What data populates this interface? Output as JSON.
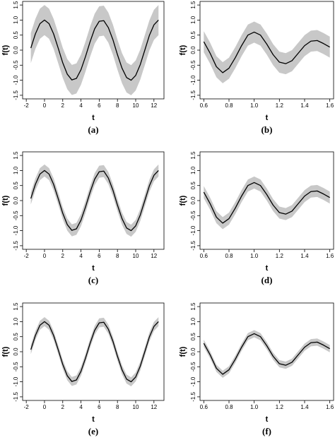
{
  "chart_data": [
    {
      "type": "line",
      "xlabel": "t",
      "ylabel": "f(t)",
      "caption": "(a)",
      "color": "#000000",
      "band_color": "#c8c8c8",
      "x": [
        -1.5,
        -1,
        -0.5,
        0,
        0.5,
        1,
        1.5,
        2,
        2.5,
        3,
        3.5,
        4,
        4.5,
        5,
        5.5,
        6,
        6.5,
        7,
        7.5,
        8,
        8.5,
        9,
        9.5,
        10,
        10.5,
        11,
        11.5,
        12,
        12.5
      ],
      "values": [
        0.07,
        0.54,
        0.88,
        1,
        0.88,
        0.54,
        0.07,
        -0.42,
        -0.8,
        -0.99,
        -0.94,
        -0.65,
        -0.21,
        0.28,
        0.71,
        0.96,
        0.98,
        0.75,
        0.35,
        -0.15,
        -0.6,
        -0.91,
        -1,
        -0.84,
        -0.48,
        0,
        0.49,
        0.84,
        1
      ],
      "band_lower": [
        -0.43,
        0.04,
        0.38,
        0.5,
        0.38,
        0.04,
        -0.43,
        -0.92,
        -1.3,
        -1.49,
        -1.44,
        -1.15,
        -0.71,
        -0.22,
        0.21,
        0.46,
        0.48,
        0.25,
        -0.15,
        -0.65,
        -1.1,
        -1.41,
        -1.5,
        -1.34,
        -0.98,
        -0.5,
        -0.01,
        0.34,
        0.5
      ],
      "band_upper": [
        0.57,
        1.04,
        1.38,
        1.5,
        1.38,
        1.04,
        0.57,
        0.08,
        -0.3,
        -0.49,
        -0.44,
        -0.15,
        0.29,
        0.78,
        1.21,
        1.46,
        1.48,
        1.25,
        0.85,
        0.35,
        -0.1,
        -0.41,
        -0.5,
        -0.34,
        0.02,
        0.5,
        0.99,
        1.34,
        1.5
      ],
      "xlim": [
        -2.4,
        13.1
      ],
      "xticks": [
        -2,
        0,
        2,
        4,
        6,
        8,
        10,
        12
      ],
      "ylim": [
        -1.62,
        1.62
      ],
      "yticks": [
        {
          "value": -1.5,
          "label": "-1.5"
        },
        {
          "value": -1,
          "label": "-1.0"
        },
        {
          "value": -0.5,
          "label": "-0.5"
        },
        {
          "value": 0,
          "label": "0.0"
        },
        {
          "value": 0.5,
          "label": "0.5"
        },
        {
          "value": 1,
          "label": "1.0"
        },
        {
          "value": 1.5,
          "label": "1.5"
        }
      ]
    },
    {
      "type": "line",
      "xlabel": "t",
      "ylabel": "f(t)",
      "caption": "(b)",
      "color": "#000000",
      "band_color": "#c8c8c8",
      "x": [
        0.6,
        0.65,
        0.7,
        0.75,
        0.8,
        0.85,
        0.9,
        0.95,
        1,
        1.05,
        1.1,
        1.15,
        1.2,
        1.25,
        1.3,
        1.35,
        1.4,
        1.45,
        1.5,
        1.55,
        1.6
      ],
      "values": [
        0.28,
        -0.1,
        -0.55,
        -0.75,
        -0.6,
        -0.25,
        0.15,
        0.5,
        0.6,
        0.5,
        0.2,
        -0.15,
        -0.4,
        -0.45,
        -0.35,
        -0.1,
        0.15,
        0.3,
        0.32,
        0.22,
        0.1
      ],
      "band_lower": [
        -0.07,
        -0.45,
        -0.9,
        -1.1,
        -0.95,
        -0.6,
        -0.2,
        0.15,
        0.25,
        0.15,
        -0.15,
        -0.5,
        -0.75,
        -0.8,
        -0.7,
        -0.45,
        -0.2,
        -0.05,
        -0.03,
        -0.13,
        -0.25
      ],
      "band_upper": [
        0.63,
        0.25,
        -0.2,
        -0.4,
        -0.25,
        0.1,
        0.5,
        0.85,
        0.95,
        0.85,
        0.55,
        0.2,
        -0.05,
        -0.1,
        0,
        0.25,
        0.5,
        0.65,
        0.67,
        0.57,
        0.45
      ],
      "xlim": [
        0.57,
        1.63
      ],
      "xticks": [
        0.6,
        0.8,
        {
          "value": 1,
          "label": "1.0"
        },
        1.2,
        1.4,
        1.6
      ],
      "ylim": [
        -1.62,
        1.62
      ],
      "yticks": [
        {
          "value": -1.5,
          "label": "-1.5"
        },
        {
          "value": -1,
          "label": "-1.0"
        },
        {
          "value": -0.5,
          "label": "-0.5"
        },
        {
          "value": 0,
          "label": "0.0"
        },
        {
          "value": 0.5,
          "label": "0.5"
        },
        {
          "value": 1,
          "label": "1.0"
        },
        {
          "value": 1.5,
          "label": "1.5"
        }
      ]
    },
    {
      "type": "line",
      "xlabel": "t",
      "ylabel": "f(t)",
      "caption": "(c)",
      "color": "#000000",
      "band_color": "#c8c8c8",
      "x": [
        -1.5,
        -1,
        -0.5,
        0,
        0.5,
        1,
        1.5,
        2,
        2.5,
        3,
        3.5,
        4,
        4.5,
        5,
        5.5,
        6,
        6.5,
        7,
        7.5,
        8,
        8.5,
        9,
        9.5,
        10,
        10.5,
        11,
        11.5,
        12,
        12.5
      ],
      "values": [
        0.07,
        0.54,
        0.88,
        1,
        0.88,
        0.54,
        0.07,
        -0.42,
        -0.8,
        -0.99,
        -0.94,
        -0.65,
        -0.21,
        0.28,
        0.71,
        0.96,
        0.98,
        0.75,
        0.35,
        -0.15,
        -0.6,
        -0.91,
        -1,
        -0.84,
        -0.48,
        0,
        0.49,
        0.84,
        1
      ],
      "band_lower": [
        -0.13,
        0.34,
        0.68,
        0.8,
        0.68,
        0.34,
        -0.13,
        -0.62,
        -1,
        -1.19,
        -1.14,
        -0.85,
        -0.41,
        0.08,
        0.51,
        0.76,
        0.78,
        0.55,
        0.15,
        -0.35,
        -0.8,
        -1.11,
        -1.2,
        -1.04,
        -0.68,
        -0.2,
        0.29,
        0.64,
        0.8
      ],
      "band_upper": [
        0.27,
        0.74,
        1.08,
        1.2,
        1.08,
        0.74,
        0.27,
        -0.22,
        -0.6,
        -0.79,
        -0.74,
        -0.45,
        -0.01,
        0.48,
        0.91,
        1.16,
        1.18,
        0.95,
        0.55,
        0.05,
        -0.4,
        -0.71,
        -0.8,
        -0.64,
        -0.28,
        0.2,
        0.69,
        1.04,
        1.2
      ],
      "xlim": [
        -2.4,
        13.1
      ],
      "xticks": [
        -2,
        0,
        2,
        4,
        6,
        8,
        10,
        12
      ],
      "ylim": [
        -1.62,
        1.62
      ],
      "yticks": [
        {
          "value": -1.5,
          "label": "-1.5"
        },
        {
          "value": -1,
          "label": "-1.0"
        },
        {
          "value": -0.5,
          "label": "-0.5"
        },
        {
          "value": 0,
          "label": "0.0"
        },
        {
          "value": 0.5,
          "label": "0.5"
        },
        {
          "value": 1,
          "label": "1.0"
        },
        {
          "value": 1.5,
          "label": "1.5"
        }
      ]
    },
    {
      "type": "line",
      "xlabel": "t",
      "ylabel": "f(t)",
      "caption": "(d)",
      "color": "#000000",
      "band_color": "#c8c8c8",
      "x": [
        0.6,
        0.65,
        0.7,
        0.75,
        0.8,
        0.85,
        0.9,
        0.95,
        1,
        1.05,
        1.1,
        1.15,
        1.2,
        1.25,
        1.3,
        1.35,
        1.4,
        1.45,
        1.5,
        1.55,
        1.6
      ],
      "values": [
        0.28,
        -0.1,
        -0.55,
        -0.75,
        -0.6,
        -0.25,
        0.15,
        0.5,
        0.6,
        0.5,
        0.2,
        -0.15,
        -0.4,
        -0.45,
        -0.35,
        -0.1,
        0.15,
        0.3,
        0.32,
        0.22,
        0.1
      ],
      "band_lower": [
        0.08,
        -0.3,
        -0.75,
        -0.95,
        -0.8,
        -0.45,
        -0.05,
        0.3,
        0.4,
        0.3,
        0,
        -0.35,
        -0.6,
        -0.65,
        -0.55,
        -0.3,
        -0.05,
        0.1,
        0.12,
        0.02,
        -0.1
      ],
      "band_upper": [
        0.48,
        0.1,
        -0.35,
        -0.55,
        -0.4,
        -0.05,
        0.35,
        0.7,
        0.8,
        0.7,
        0.4,
        0.05,
        -0.2,
        -0.25,
        -0.15,
        0.1,
        0.35,
        0.5,
        0.52,
        0.42,
        0.3
      ],
      "xlim": [
        0.57,
        1.63
      ],
      "xticks": [
        0.6,
        0.8,
        {
          "value": 1,
          "label": "1.0"
        },
        1.2,
        1.4,
        1.6
      ],
      "ylim": [
        -1.62,
        1.62
      ],
      "yticks": [
        {
          "value": -1.5,
          "label": "-1.5"
        },
        {
          "value": -1,
          "label": "-1.0"
        },
        {
          "value": -0.5,
          "label": "-0.5"
        },
        {
          "value": 0,
          "label": "0.0"
        },
        {
          "value": 0.5,
          "label": "0.5"
        },
        {
          "value": 1,
          "label": "1.0"
        },
        {
          "value": 1.5,
          "label": "1.5"
        }
      ]
    },
    {
      "type": "line",
      "xlabel": "t",
      "ylabel": "f(t)",
      "caption": "(e)",
      "color": "#000000",
      "band_color": "#c8c8c8",
      "x": [
        -1.5,
        -1,
        -0.5,
        0,
        0.5,
        1,
        1.5,
        2,
        2.5,
        3,
        3.5,
        4,
        4.5,
        5,
        5.5,
        6,
        6.5,
        7,
        7.5,
        8,
        8.5,
        9,
        9.5,
        10,
        10.5,
        11,
        11.5,
        12,
        12.5
      ],
      "values": [
        0.07,
        0.54,
        0.88,
        1,
        0.88,
        0.54,
        0.07,
        -0.42,
        -0.8,
        -0.99,
        -0.94,
        -0.65,
        -0.21,
        0.28,
        0.71,
        0.96,
        0.98,
        0.75,
        0.35,
        -0.15,
        -0.6,
        -0.91,
        -1,
        -0.84,
        -0.48,
        0,
        0.49,
        0.84,
        1
      ],
      "band_lower": [
        -0.08,
        0.39,
        0.73,
        0.85,
        0.73,
        0.39,
        -0.08,
        -0.57,
        -0.95,
        -1.14,
        -1.09,
        -0.8,
        -0.36,
        0.13,
        0.56,
        0.81,
        0.83,
        0.6,
        0.2,
        -0.3,
        -0.75,
        -1.06,
        -1.15,
        -0.99,
        -0.63,
        -0.15,
        0.34,
        0.69,
        0.85
      ],
      "band_upper": [
        0.22,
        0.69,
        1.03,
        1.15,
        1.03,
        0.69,
        0.22,
        -0.27,
        -0.65,
        -0.84,
        -0.79,
        -0.5,
        -0.06,
        0.43,
        0.86,
        1.11,
        1.13,
        0.9,
        0.5,
        0,
        -0.45,
        -0.76,
        -0.85,
        -0.69,
        -0.33,
        0.15,
        0.64,
        0.99,
        1.15
      ],
      "xlim": [
        -2.4,
        13.1
      ],
      "xticks": [
        -2,
        0,
        2,
        4,
        6,
        8,
        10,
        12
      ],
      "ylim": [
        -1.62,
        1.62
      ],
      "yticks": [
        {
          "value": -1.5,
          "label": "-1.5"
        },
        {
          "value": -1,
          "label": "-1.0"
        },
        {
          "value": -0.5,
          "label": "-0.5"
        },
        {
          "value": 0,
          "label": "0.0"
        },
        {
          "value": 0.5,
          "label": "0.5"
        },
        {
          "value": 1,
          "label": "1.0"
        },
        {
          "value": 1.5,
          "label": "1.5"
        }
      ]
    },
    {
      "type": "line",
      "xlabel": "t",
      "ylabel": "f(t)",
      "caption": "(f)",
      "color": "#000000",
      "band_color": "#c8c8c8",
      "x": [
        0.6,
        0.65,
        0.7,
        0.75,
        0.8,
        0.85,
        0.9,
        0.95,
        1,
        1.05,
        1.1,
        1.15,
        1.2,
        1.25,
        1.3,
        1.35,
        1.4,
        1.45,
        1.5,
        1.55,
        1.6
      ],
      "values": [
        0.28,
        -0.1,
        -0.55,
        -0.75,
        -0.6,
        -0.25,
        0.15,
        0.5,
        0.6,
        0.5,
        0.2,
        -0.15,
        -0.4,
        -0.45,
        -0.35,
        -0.1,
        0.15,
        0.3,
        0.32,
        0.22,
        0.1
      ],
      "band_lower": [
        0.16,
        -0.22,
        -0.67,
        -0.87,
        -0.72,
        -0.37,
        0.03,
        0.38,
        0.48,
        0.38,
        0.08,
        -0.27,
        -0.52,
        -0.57,
        -0.47,
        -0.22,
        0.03,
        0.18,
        0.2,
        0.1,
        -0.02
      ],
      "band_upper": [
        0.4,
        0.02,
        -0.43,
        -0.63,
        -0.48,
        -0.13,
        0.27,
        0.62,
        0.72,
        0.62,
        0.32,
        -0.03,
        -0.28,
        -0.33,
        -0.23,
        0.02,
        0.27,
        0.42,
        0.44,
        0.34,
        0.22
      ],
      "xlim": [
        0.57,
        1.63
      ],
      "xticks": [
        0.6,
        0.8,
        {
          "value": 1,
          "label": "1.0"
        },
        1.2,
        1.4,
        1.6
      ],
      "ylim": [
        -1.62,
        1.62
      ],
      "yticks": [
        {
          "value": -1.5,
          "label": "-1.5"
        },
        {
          "value": -1,
          "label": "-1.0"
        },
        {
          "value": -0.5,
          "label": "-0.5"
        },
        {
          "value": 0,
          "label": "0.0"
        },
        {
          "value": 0.5,
          "label": "0.5"
        },
        {
          "value": 1,
          "label": "1.0"
        },
        {
          "value": 1.5,
          "label": "1.5"
        }
      ]
    }
  ]
}
